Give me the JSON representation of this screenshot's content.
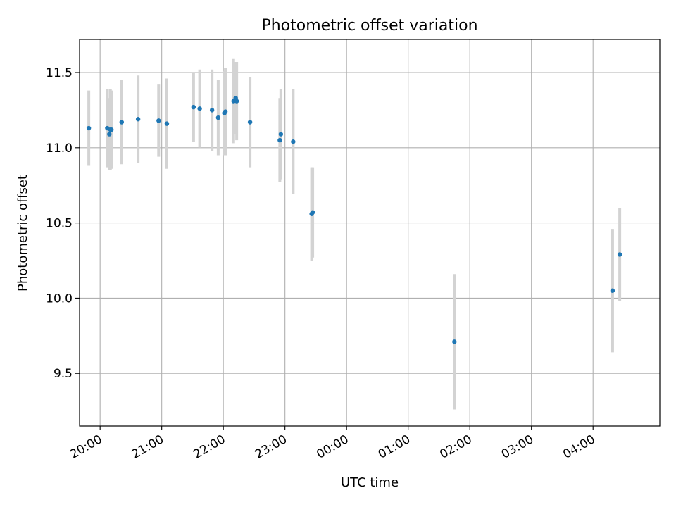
{
  "chart_data": {
    "type": "scatter",
    "title": "Photometric offset variation",
    "xlabel": "UTC time",
    "ylabel": "Photometric offset",
    "x_ticks": [
      "20:00",
      "21:00",
      "22:00",
      "23:00",
      "00:00",
      "01:00",
      "02:00",
      "03:00",
      "04:00"
    ],
    "y_ticks": [
      "9.5",
      "10.0",
      "10.5",
      "11.0",
      "11.5"
    ],
    "xlim": [
      "19:40",
      "05:05"
    ],
    "ylim": [
      9.15,
      11.72
    ],
    "grid": true,
    "error_bar_color": "#d3d3d3",
    "point_color": "#1f77b4",
    "series": [
      {
        "points": [
          {
            "x": "19:49",
            "y": 11.13,
            "err": 0.25
          },
          {
            "x": "20:07",
            "y": 11.13,
            "err": 0.26
          },
          {
            "x": "20:09",
            "y": 11.09,
            "err": 0.24
          },
          {
            "x": "20:10",
            "y": 11.12,
            "err": 0.27
          },
          {
            "x": "20:11",
            "y": 11.12,
            "err": 0.26
          },
          {
            "x": "20:21",
            "y": 11.17,
            "err": 0.28
          },
          {
            "x": "20:37",
            "y": 11.19,
            "err": 0.29
          },
          {
            "x": "20:57",
            "y": 11.18,
            "err": 0.24
          },
          {
            "x": "21:05",
            "y": 11.16,
            "err": 0.3
          },
          {
            "x": "21:31",
            "y": 11.27,
            "err": 0.23
          },
          {
            "x": "21:37",
            "y": 11.26,
            "err": 0.26
          },
          {
            "x": "21:49",
            "y": 11.25,
            "err": 0.27
          },
          {
            "x": "21:55",
            "y": 11.2,
            "err": 0.25
          },
          {
            "x": "22:01",
            "y": 11.23,
            "err": 0.28
          },
          {
            "x": "22:02",
            "y": 11.24,
            "err": 0.29
          },
          {
            "x": "22:10",
            "y": 11.31,
            "err": 0.28
          },
          {
            "x": "22:12",
            "y": 11.33,
            "err": 0.24
          },
          {
            "x": "22:13",
            "y": 11.31,
            "err": 0.26
          },
          {
            "x": "22:26",
            "y": 11.17,
            "err": 0.3
          },
          {
            "x": "22:55",
            "y": 11.05,
            "err": 0.28
          },
          {
            "x": "22:56",
            "y": 11.09,
            "err": 0.3
          },
          {
            "x": "23:08",
            "y": 11.04,
            "err": 0.35
          },
          {
            "x": "23:26",
            "y": 10.56,
            "err": 0.31
          },
          {
            "x": "23:27",
            "y": 10.57,
            "err": 0.3
          },
          {
            "x": "01:45",
            "y": 9.71,
            "err": 0.45
          },
          {
            "x": "04:19",
            "y": 10.05,
            "err": 0.41
          },
          {
            "x": "04:26",
            "y": 10.29,
            "err": 0.31
          }
        ]
      }
    ]
  }
}
